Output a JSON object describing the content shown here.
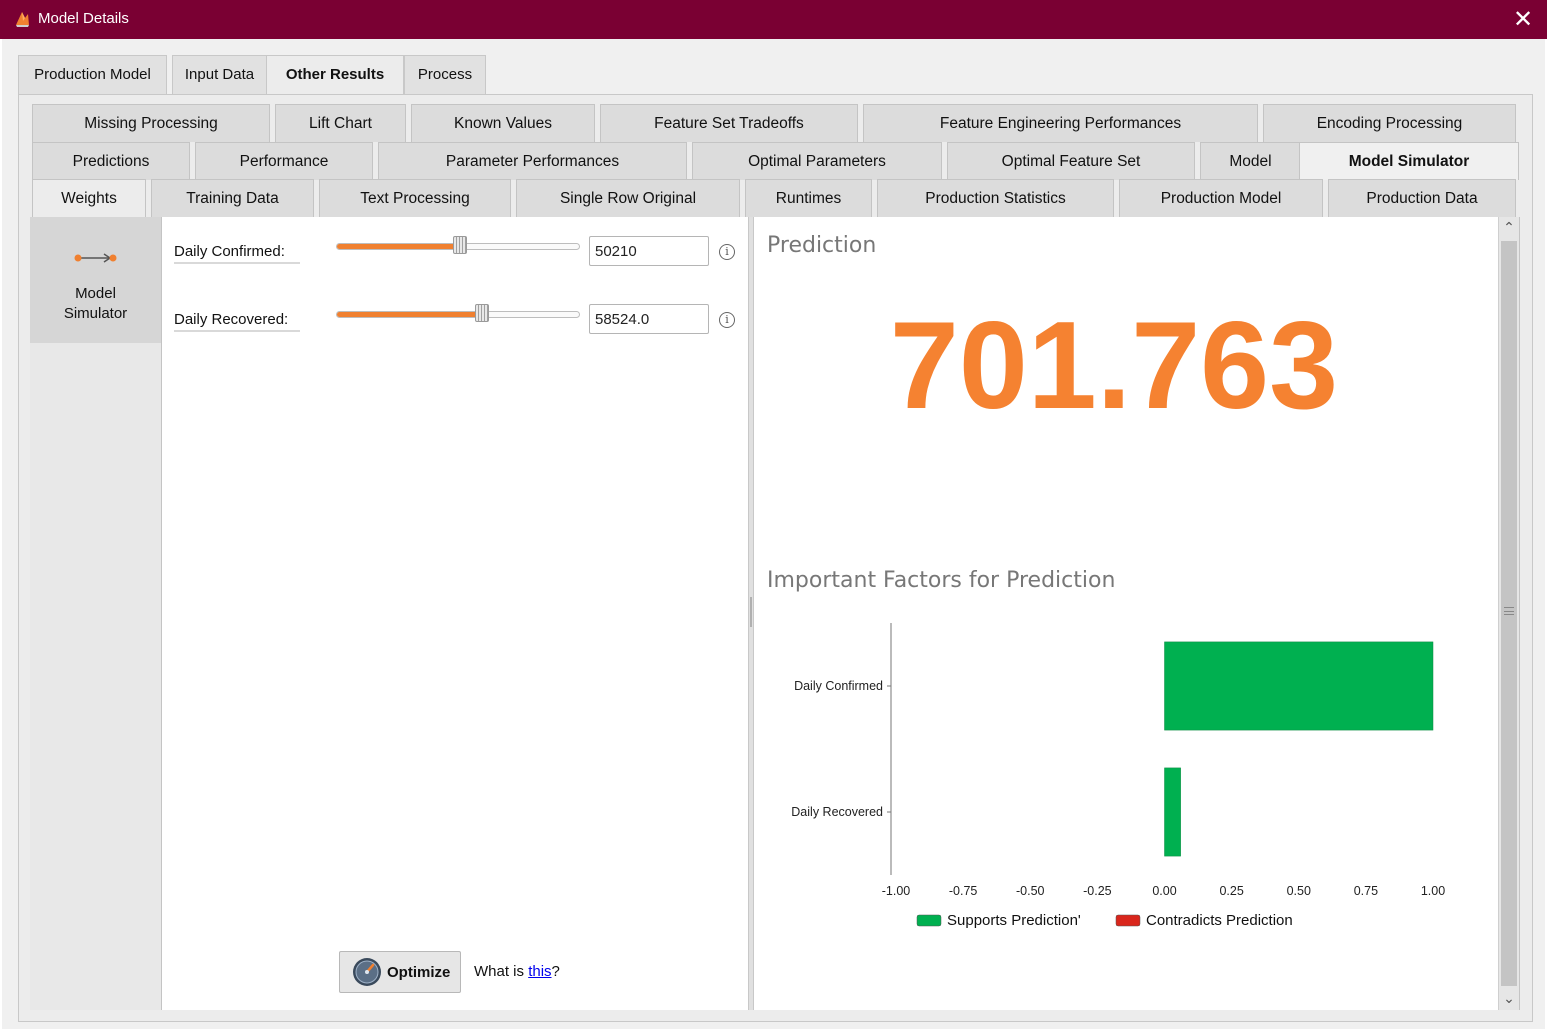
{
  "window": {
    "title": "Model Details",
    "close_glyph": "✕"
  },
  "main_tabs": [
    {
      "label": "Production Model",
      "active": false
    },
    {
      "label": "Input Data",
      "active": false
    },
    {
      "label": "Other Results",
      "active": true
    },
    {
      "label": "Process",
      "active": false
    }
  ],
  "sub_tabs": {
    "row1": [
      "Missing Processing",
      "Lift Chart",
      "Known Values",
      "Feature Set Tradeoffs",
      "Feature Engineering Performances",
      "Encoding Processing"
    ],
    "row2": [
      "Predictions",
      "Performance",
      "Parameter Performances",
      "Optimal Parameters",
      "Optimal Feature Set",
      "Model",
      "Model Simulator"
    ],
    "row3": [
      "Weights",
      "Training Data",
      "Text Processing",
      "Single Row Original",
      "Runtimes",
      "Production Statistics",
      "Production Model",
      "Production Data"
    ],
    "active": "Model Simulator"
  },
  "side_nav": {
    "item_label_line1": "Model",
    "item_label_line2": "Simulator"
  },
  "simulator": {
    "fields": [
      {
        "label": "Daily Confirmed:",
        "value": "50210",
        "slider_fraction": 0.51
      },
      {
        "label": "Daily Recovered:",
        "value": "58524.0",
        "slider_fraction": 0.6
      }
    ],
    "info_glyph": "i",
    "optimize_label": "Optimize",
    "what_is_prefix": "What is ",
    "what_is_link": "this",
    "what_is_suffix": "?"
  },
  "prediction": {
    "title": "Prediction",
    "value": "701.763",
    "value_color": "#f58231"
  },
  "factors_title": "Important Factors for Prediction",
  "chart_data": {
    "type": "bar",
    "orientation": "horizontal",
    "categories": [
      "Daily Confirmed",
      "Daily Recovered"
    ],
    "values": [
      1.0,
      0.06
    ],
    "xlim": [
      -1.0,
      1.0
    ],
    "xticks": [
      "-1.00",
      "-0.75",
      "-0.50",
      "-0.25",
      "0.00",
      "0.25",
      "0.50",
      "0.75",
      "1.00"
    ],
    "xtick_values": [
      -1.0,
      -0.75,
      -0.5,
      -0.25,
      0.0,
      0.25,
      0.5,
      0.75,
      1.0
    ],
    "legend": [
      {
        "label": "Supports Prediction'",
        "color": "#00b050"
      },
      {
        "label": "Contradicts Prediction",
        "color": "#d9261c"
      }
    ],
    "legend_position": "bottom",
    "grid": false
  },
  "colors": {
    "title_bar": "#7a0033",
    "accent_orange": "#f58231",
    "support_green": "#00b050",
    "contradict_red": "#d9261c"
  },
  "scrollbar": {
    "up_glyph": "⌃",
    "down_glyph": "⌄"
  }
}
